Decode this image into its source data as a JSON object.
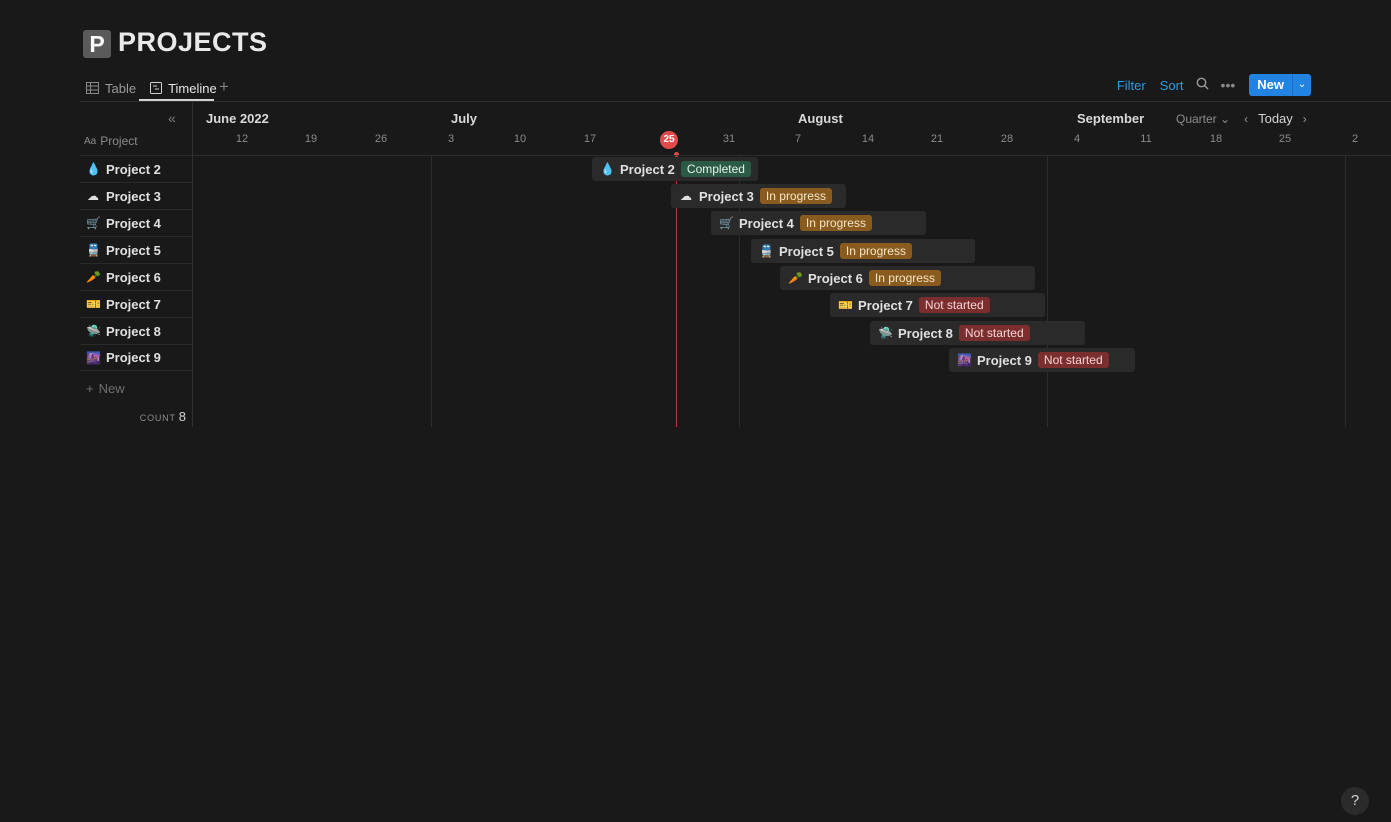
{
  "page": {
    "icon_letter": "P",
    "title": "PROJECTS"
  },
  "views": [
    {
      "label": "Table",
      "icon": "table-icon",
      "active": false
    },
    {
      "label": "Timeline",
      "icon": "timeline-icon",
      "active": true
    }
  ],
  "toolbar": {
    "filter": "Filter",
    "sort": "Sort",
    "new_label": "New"
  },
  "left": {
    "column_header": "Project",
    "add_new": "New",
    "count_label": "COUNT",
    "count_value": "8"
  },
  "projects": [
    {
      "name": "Project 2",
      "emoji": "💧",
      "status": "Completed"
    },
    {
      "name": "Project 3",
      "emoji": "☁",
      "status": "In progress"
    },
    {
      "name": "Project 4",
      "emoji": "🛒",
      "status": "In progress"
    },
    {
      "name": "Project 5",
      "emoji": "🚆",
      "status": "In progress"
    },
    {
      "name": "Project 6",
      "emoji": "🥕",
      "status": "In progress"
    },
    {
      "name": "Project 7",
      "emoji": "🎫",
      "status": "Not started"
    },
    {
      "name": "Project 8",
      "emoji": "🛸",
      "status": "Not started"
    },
    {
      "name": "Project 9",
      "emoji": "🌆",
      "status": "Not started"
    }
  ],
  "timeline": {
    "months": [
      "June 2022",
      "July",
      "August",
      "September"
    ],
    "days": [
      "12",
      "19",
      "26",
      "3",
      "10",
      "17",
      "31",
      "7",
      "14",
      "21",
      "28",
      "4",
      "11",
      "18",
      "25",
      "2"
    ],
    "today": "25",
    "zoom": "Quarter",
    "today_button": "Today"
  },
  "status_colors": {
    "Completed": {
      "bg": "#2b5a45",
      "fg": "#e5f4ec"
    },
    "In progress": {
      "bg": "#8a5b1e",
      "fg": "#f7e6c9"
    },
    "Not started": {
      "bg": "#7a2e2e",
      "fg": "#f5d6d6"
    }
  }
}
